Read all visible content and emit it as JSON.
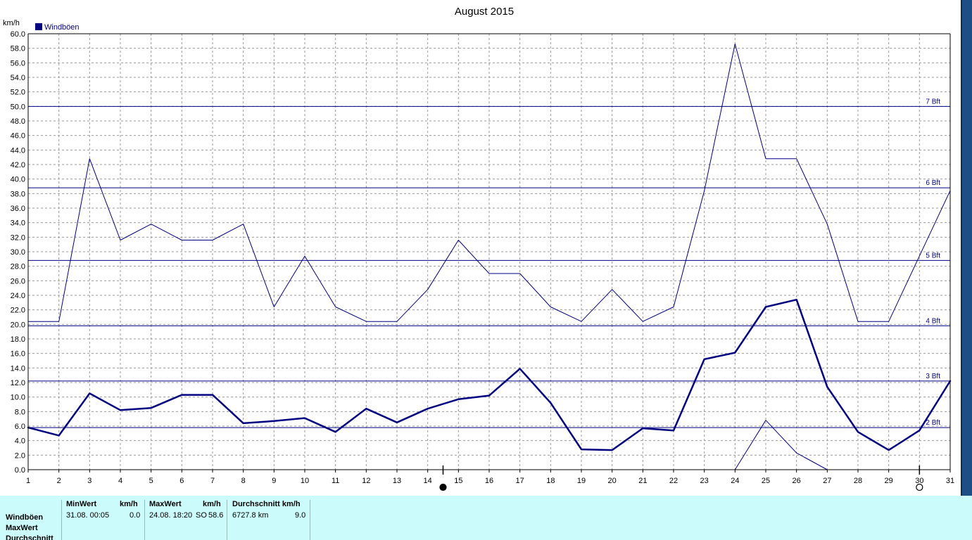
{
  "chart_data": {
    "type": "line",
    "title": "August 2015",
    "ylabel": "km/h",
    "legend": {
      "label": "Windböen",
      "color": "#000080",
      "placement": "top-left"
    },
    "x": [
      1,
      2,
      3,
      4,
      5,
      6,
      7,
      8,
      9,
      10,
      11,
      12,
      13,
      14,
      15,
      16,
      17,
      18,
      19,
      20,
      21,
      22,
      23,
      24,
      25,
      26,
      27,
      28,
      29,
      30,
      31
    ],
    "xlim": [
      1,
      31
    ],
    "ylim": [
      0,
      60
    ],
    "ytick_step": 2,
    "grid": true,
    "series": [
      {
        "name": "MaxWert",
        "line_width": 1,
        "color": "#000080",
        "values": [
          20.4,
          20.4,
          42.8,
          31.6,
          33.8,
          31.6,
          31.6,
          33.8,
          22.4,
          29.4,
          22.4,
          20.4,
          20.4,
          24.8,
          31.6,
          27.0,
          27.0,
          22.4,
          20.4,
          24.8,
          20.4,
          22.4,
          38.4,
          58.6,
          42.8,
          42.8,
          33.8,
          20.4,
          20.4,
          29.4,
          38.4
        ]
      },
      {
        "name": "Durchschnitt",
        "line_width": 2.5,
        "color": "#000080",
        "values": [
          5.8,
          4.7,
          10.5,
          8.2,
          8.5,
          10.3,
          10.3,
          6.4,
          6.7,
          7.1,
          5.2,
          8.4,
          6.5,
          8.4,
          9.7,
          10.2,
          13.9,
          9.2,
          2.8,
          2.7,
          5.7,
          5.4,
          15.2,
          16.1,
          22.4,
          23.4,
          11.4,
          5.2,
          2.7,
          5.4,
          12.2
        ]
      },
      {
        "name": "MinWert",
        "line_width": 1,
        "color": "#000080",
        "x": [
          24,
          25,
          26,
          27
        ],
        "values": [
          0,
          6.8,
          2.3,
          0
        ]
      }
    ],
    "reference_lines": [
      {
        "label": "2 Bft",
        "value": 5.8
      },
      {
        "label": "3 Bft",
        "value": 12.2
      },
      {
        "label": "4 Bft",
        "value": 19.8
      },
      {
        "label": "5 Bft",
        "value": 28.8
      },
      {
        "label": "6 Bft",
        "value": 38.8
      },
      {
        "label": "7 Bft",
        "value": 50.0
      }
    ],
    "moon_phases": [
      {
        "day": 14.5,
        "phase": "new"
      },
      {
        "day": 30,
        "phase": "full"
      }
    ]
  },
  "stats": {
    "row_labels": [
      "Windböen",
      "MaxWert",
      "Durchschnitt"
    ],
    "min": {
      "header": "MinWert",
      "unit": "km/h",
      "date": "31.08.  00:05",
      "value": "0.0"
    },
    "max": {
      "header": "MaxWert",
      "unit": "km/h",
      "date": "24.08.  18:20",
      "dir": "SO",
      "value": "58.6"
    },
    "avg": {
      "header": "Durchschnitt km/h",
      "distance": "6727.8 km",
      "value": "9.0"
    }
  }
}
